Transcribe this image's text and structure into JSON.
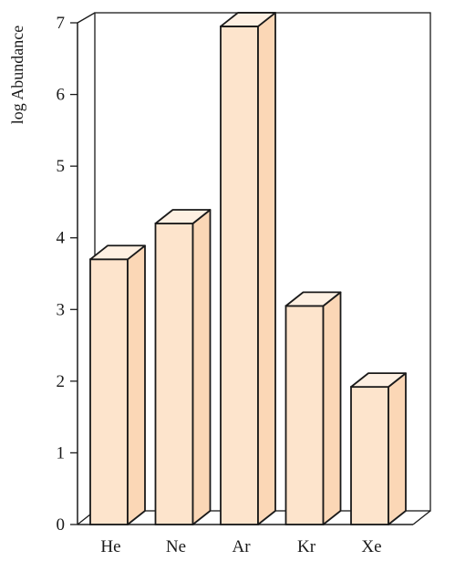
{
  "chart_data": {
    "type": "bar",
    "title": "",
    "xlabel": "",
    "ylabel": "log Abundance",
    "categories": [
      "He",
      "Ne",
      "Ar",
      "Kr",
      "Xe"
    ],
    "values": [
      3.7,
      4.2,
      6.95,
      3.05,
      1.92
    ],
    "ylim": [
      0,
      7
    ],
    "yticks": [
      "0",
      "1",
      "2",
      "3",
      "4",
      "5",
      "6",
      "7"
    ],
    "grid": false,
    "legend": "none",
    "bar_front_color": "#fde4cc",
    "bar_side_color": "#fbd7b6",
    "bar_top_color": "#fef0e2",
    "stroke_color": "#1a1a1a"
  }
}
